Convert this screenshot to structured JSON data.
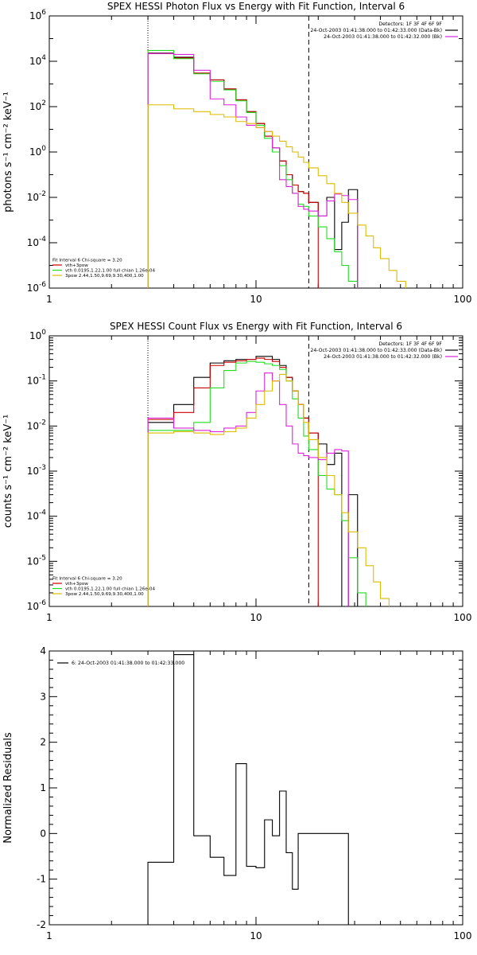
{
  "chart_data": [
    {
      "type": "line",
      "title": "SPEX HESSI Photon Flux vs Energy with Fit Function, Interval 6",
      "ylabel": "photons s⁻¹ cm⁻² keV⁻¹",
      "xlabel": "",
      "xscale": "log",
      "yscale": "log",
      "xlim": [
        1,
        100
      ],
      "ylim": [
        1e-06,
        1000000.0
      ],
      "xticks": [
        "1",
        "10",
        "100"
      ],
      "yticks": [
        {
          "v": 1e-06,
          "label": "10",
          "sup": "-6"
        },
        {
          "v": 0.0001,
          "label": "10",
          "sup": "-4"
        },
        {
          "v": 0.01,
          "label": "10",
          "sup": "-2"
        },
        {
          "v": 1,
          "label": "10",
          "sup": "0"
        },
        {
          "v": 100.0,
          "label": "10",
          "sup": "2"
        },
        {
          "v": 10000.0,
          "label": "10",
          "sup": "4"
        },
        {
          "v": 1000000.0,
          "label": "10",
          "sup": "6"
        }
      ],
      "vlines": [
        {
          "x": 3,
          "style": "dotted"
        },
        {
          "x": 18,
          "style": "dashed"
        }
      ],
      "edges": [
        3,
        4,
        5,
        6,
        7,
        8,
        9,
        10,
        11,
        12,
        13,
        14,
        15,
        16,
        17,
        18,
        20,
        22,
        24,
        26,
        28,
        31,
        34,
        37,
        40,
        44,
        48,
        53,
        58,
        64
      ],
      "series": [
        {
          "color": "#000000",
          "values": [
            23000,
            15000,
            3000,
            1500,
            600,
            200,
            60,
            18,
            5,
            1.5,
            0.4,
            0.1,
            0.035,
            0.018,
            0.015,
            0.006,
            0.0015,
            0.01,
            5e-05,
            0.0008,
            0.022,
            8e-07,
            null,
            null,
            null,
            null,
            null,
            null,
            null
          ]
        },
        {
          "color": "#cc0000",
          "values": [
            22000,
            14000,
            3000,
            1500,
            600,
            200,
            60,
            18,
            5,
            1.5,
            0.4,
            0.1,
            0.035,
            0.018,
            0.015,
            0.006,
            null,
            null,
            null,
            null,
            null,
            null,
            null,
            null,
            null,
            null,
            null,
            null,
            null
          ]
        },
        {
          "color": "#22dd22",
          "values": [
            30000,
            13000,
            2800,
            1300,
            550,
            180,
            55,
            15,
            4,
            1.0,
            0.25,
            0.06,
            0.015,
            0.005,
            0.004,
            0.0015,
            0.0005,
            0.00015,
            4e-05,
            1e-05,
            2e-06,
            8e-07,
            null,
            null,
            null,
            null,
            null,
            null,
            null
          ]
        },
        {
          "color": "#dd22dd",
          "values": [
            22000,
            20000,
            4000,
            220,
            120,
            35,
            15,
            12,
            8,
            1.5,
            0.06,
            0.03,
            0.015,
            0.004,
            0.003,
            0.0025,
            0.0015,
            0.007,
            0.014,
            0.012,
            0.008,
            8e-07,
            null,
            null,
            null,
            null,
            null,
            null,
            null
          ]
        },
        {
          "color": "#ddbb00",
          "values": [
            120,
            80,
            60,
            45,
            35,
            22,
            18,
            12,
            8,
            5,
            3,
            1.7,
            1.0,
            0.6,
            0.35,
            0.2,
            0.09,
            0.04,
            0.015,
            0.006,
            0.002,
            0.0006,
            0.0002,
            6e-05,
            2e-05,
            6e-06,
            2e-06,
            8e-07,
            8e-07
          ]
        }
      ],
      "legend_top": [
        {
          "text": "Detectors: 1F 3F 4F 6F 9F",
          "color": "#000000"
        },
        {
          "text": "24-Oct-2003 01:41:38.000 to 01:42:33.000 (Data-Bk)",
          "color": "#000000"
        },
        {
          "text": "24-Oct-2003 01:41:38.000 to 01:42:32.000 (Bk)",
          "color": "#dd22dd"
        }
      ],
      "legend_bottom": [
        {
          "text": "Fit Interval 6   Chi-square = 3.20",
          "color": null
        },
        {
          "text": "vth+3pow",
          "color": "#cc0000"
        },
        {
          "text": "vth 0.0195,1.22,1.00  full chian 1.26e-04",
          "color": "#22dd22"
        },
        {
          "text": "3pow 2.44,1.50,9.69,9.30,400,1.00",
          "color": "#ddbb00"
        }
      ]
    },
    {
      "type": "line",
      "title": "SPEX HESSI Count Flux vs Energy with Fit Function, Interval 6",
      "ylabel": "counts s⁻¹ cm⁻² keV⁻¹",
      "xlabel": "",
      "xscale": "log",
      "yscale": "log",
      "xlim": [
        1,
        100
      ],
      "ylim": [
        1e-06,
        1
      ],
      "xticks": [
        "1",
        "10",
        "100"
      ],
      "yticks": [
        {
          "v": 1e-06,
          "label": "10",
          "sup": "-6"
        },
        {
          "v": 1e-05,
          "label": "10",
          "sup": "-5"
        },
        {
          "v": 0.0001,
          "label": "10",
          "sup": "-4"
        },
        {
          "v": 0.001,
          "label": "10",
          "sup": "-3"
        },
        {
          "v": 0.01,
          "label": "10",
          "sup": "-2"
        },
        {
          "v": 0.1,
          "label": "10",
          "sup": "-1"
        },
        {
          "v": 1,
          "label": "10",
          "sup": "0"
        }
      ],
      "vlines": [
        {
          "x": 3,
          "style": "dotted"
        },
        {
          "x": 18,
          "style": "dashed"
        }
      ],
      "edges": [
        3,
        4,
        5,
        6,
        7,
        8,
        9,
        10,
        11,
        12,
        13,
        14,
        15,
        16,
        17,
        18,
        20,
        22,
        24,
        26,
        28,
        31,
        34,
        37,
        40,
        44,
        48,
        53,
        58,
        64
      ],
      "series": [
        {
          "color": "#000000",
          "values": [
            0.012,
            0.03,
            0.12,
            0.25,
            0.28,
            0.3,
            0.3,
            0.35,
            0.35,
            0.3,
            0.22,
            0.12,
            0.06,
            0.03,
            0.015,
            0.007,
            0.004,
            0.0014,
            0.0025,
            9e-07,
            0.0003,
            8e-07,
            null,
            null,
            null,
            null,
            null,
            null,
            null
          ]
        },
        {
          "color": "#cc0000",
          "values": [
            0.014,
            0.02,
            0.07,
            0.22,
            0.26,
            0.28,
            0.3,
            0.32,
            0.3,
            0.27,
            0.2,
            0.12,
            0.06,
            0.03,
            0.015,
            0.007,
            null,
            null,
            null,
            null,
            null,
            null,
            null,
            null,
            null,
            null,
            null,
            null,
            null
          ]
        },
        {
          "color": "#22dd22",
          "values": [
            0.008,
            0.008,
            0.012,
            0.07,
            0.17,
            0.25,
            0.27,
            0.26,
            0.24,
            0.22,
            0.18,
            0.1,
            0.04,
            0.015,
            0.006,
            0.003,
            0.0008,
            0.0004,
            0.0003,
            8e-05,
            1.2e-05,
            2e-06,
            8e-07,
            null,
            null,
            null,
            null,
            null,
            null
          ]
        },
        {
          "color": "#dd22dd",
          "values": [
            0.015,
            0.009,
            0.008,
            0.0075,
            0.009,
            0.01,
            0.02,
            0.06,
            0.15,
            0.1,
            0.03,
            0.01,
            0.004,
            0.0025,
            0.0022,
            0.002,
            0.0018,
            0.0025,
            0.003,
            0.0028,
            8e-07,
            null,
            null,
            null,
            null,
            null,
            null,
            null,
            null
          ]
        },
        {
          "color": "#ddbb00",
          "values": [
            0.007,
            0.0075,
            0.007,
            0.0065,
            0.0075,
            0.009,
            0.015,
            0.03,
            0.06,
            0.1,
            0.14,
            0.1,
            0.06,
            0.03,
            0.012,
            0.005,
            0.002,
            0.0008,
            0.0003,
            0.00012,
            4.5e-05,
            2e-05,
            8e-06,
            3.5e-06,
            1.5e-06,
            8e-07,
            8e-07,
            null,
            null
          ]
        }
      ],
      "legend_top": [
        {
          "text": "Detectors: 1F 3F 4F 6F 9F",
          "color": "#000000"
        },
        {
          "text": "24-Oct-2003 01:41:38.000 to 01:42:33.000 (Data-Bk)",
          "color": "#000000"
        },
        {
          "text": "24-Oct-2003 01:41:38.000 to 01:42:32.000 (Bk)",
          "color": "#dd22dd"
        }
      ],
      "legend_bottom": [
        {
          "text": "Fit Interval 6   Chi-square = 3.20",
          "color": null
        },
        {
          "text": "vth+3pow",
          "color": "#cc0000"
        },
        {
          "text": "vth 0.0195,1.22,1.00  full chian 1.26e-04",
          "color": "#22dd22"
        },
        {
          "text": "3pow 2.44,1.50,9.69,9.30,400,1.00",
          "color": "#ddbb00"
        }
      ]
    },
    {
      "type": "line",
      "title": "",
      "ylabel": "Normalized Residuals",
      "xlabel": "",
      "xscale": "log",
      "yscale": "linear",
      "xlim": [
        1,
        100
      ],
      "ylim": [
        -2,
        4
      ],
      "xticks": [
        "1",
        "10",
        "100"
      ],
      "yticks": [
        {
          "v": -2,
          "label": "-2"
        },
        {
          "v": -1,
          "label": "-1"
        },
        {
          "v": 0,
          "label": "0"
        },
        {
          "v": 1,
          "label": "1"
        },
        {
          "v": 2,
          "label": "2"
        },
        {
          "v": 3,
          "label": "3"
        },
        {
          "v": 4,
          "label": "4"
        }
      ],
      "vlines": [],
      "edges": [
        3,
        4,
        5,
        6,
        7,
        8,
        9,
        10,
        11,
        12,
        13,
        14,
        15,
        16,
        17,
        18,
        20,
        22,
        24,
        26,
        28
      ],
      "series": [
        {
          "color": "#000000",
          "values": [
            -0.63,
            3.92,
            -0.05,
            -0.52,
            -0.92,
            1.53,
            -0.72,
            -0.75,
            0.3,
            -0.05,
            0.93,
            -0.42,
            -1.22,
            0.0,
            0.0,
            0.0,
            0.0,
            0.0,
            0.0,
            0.0
          ]
        }
      ],
      "legend_top": [
        {
          "text": "6: 24-Oct-2003 01:41:38.000 to 01:42:33.000",
          "color": "#000000"
        }
      ],
      "legend_bottom": []
    }
  ]
}
